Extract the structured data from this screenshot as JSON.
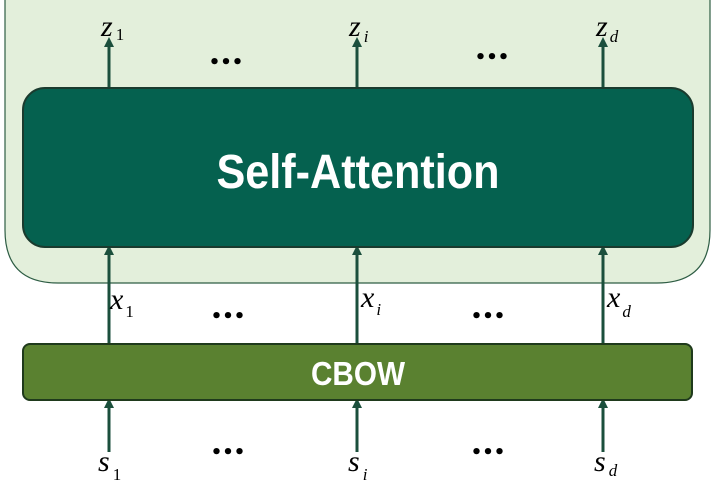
{
  "blocks": {
    "self_attention": "Self-Attention",
    "cbow": "CBOW"
  },
  "outputs": {
    "z1": {
      "base": "z",
      "sub": "1"
    },
    "zi": {
      "base": "z",
      "sub": "i"
    },
    "zd": {
      "base": "z",
      "sub": "d"
    }
  },
  "embeddings": {
    "x1": {
      "base": "x",
      "sub": "1"
    },
    "xi": {
      "base": "x",
      "sub": "i"
    },
    "xd": {
      "base": "x",
      "sub": "d"
    }
  },
  "inputs": {
    "s1": {
      "base": "s",
      "sub": "1"
    },
    "si": {
      "base": "s",
      "sub": "i"
    },
    "sd": {
      "base": "s",
      "sub": "d"
    }
  },
  "ellipsis": "•••",
  "colors": {
    "container_fill": "#e3efdb",
    "container_stroke": "#2e5d44",
    "attention_fill": "#05614f",
    "cbow_fill": "#5a8130",
    "arrow": "#1b4f3c"
  }
}
